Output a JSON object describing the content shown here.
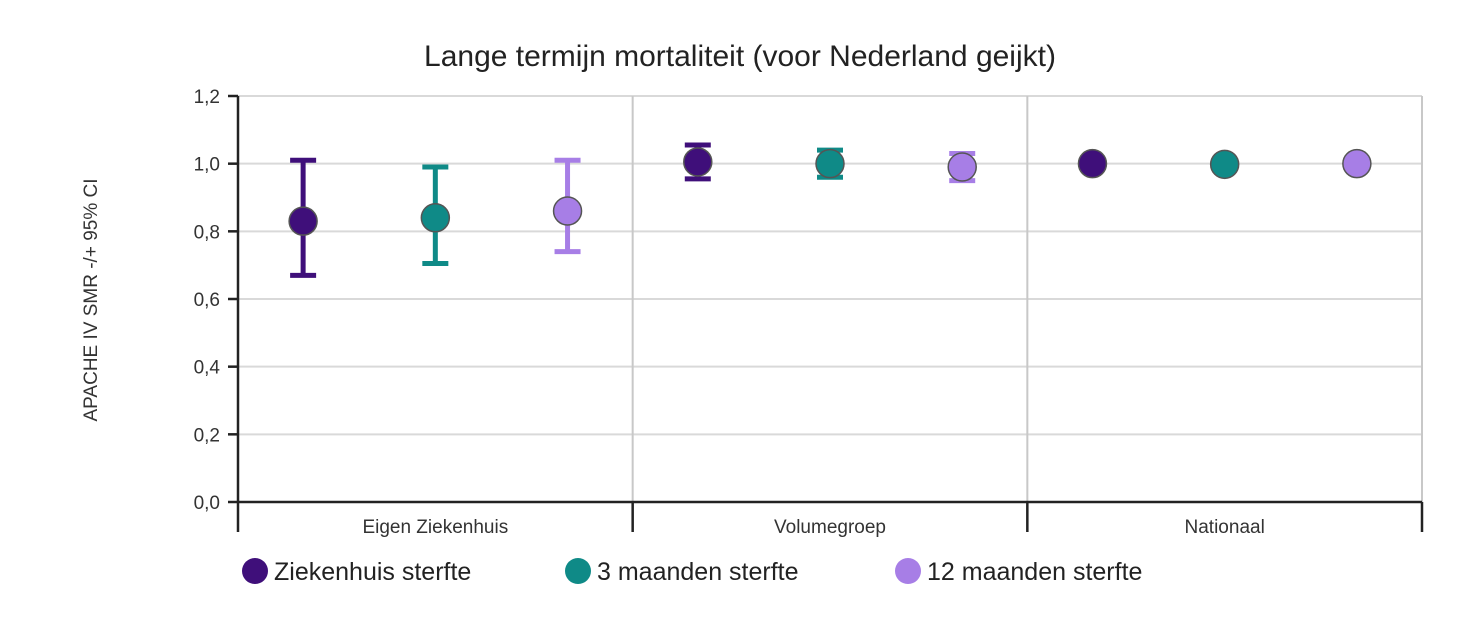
{
  "chart_data": {
    "type": "scatter",
    "title": "Lange termijn mortaliteit (voor Nederland geijkt)",
    "ylabel": "APACHE IV SMR -/+ 95% CI",
    "xlabel": "",
    "ylim": [
      0,
      1.2
    ],
    "yticks": [
      "0,0",
      "0,2",
      "0,4",
      "0,6",
      "0,8",
      "1,0",
      "1,2"
    ],
    "categories": [
      "Eigen Ziekenhuis",
      "Volumegroep",
      "Nationaal"
    ],
    "grid": true,
    "legend_position": "bottom",
    "series": [
      {
        "name": "Ziekenhuis sterfte",
        "color": "#3f0f7a",
        "values": [
          0.83,
          1.005,
          1.0
        ],
        "ci_low": [
          0.67,
          0.955,
          0.99
        ],
        "ci_high": [
          1.01,
          1.055,
          1.01
        ]
      },
      {
        "name": "3 maanden sterfte",
        "color": "#0f8a87",
        "values": [
          0.84,
          1.0,
          0.998
        ],
        "ci_low": [
          0.705,
          0.96,
          0.99
        ],
        "ci_high": [
          0.99,
          1.04,
          1.006
        ]
      },
      {
        "name": "12 maanden sterfte",
        "color": "#a77ee6",
        "values": [
          0.86,
          0.99,
          1.0
        ],
        "ci_low": [
          0.74,
          0.95,
          0.99
        ],
        "ci_high": [
          1.01,
          1.03,
          1.01
        ]
      }
    ]
  }
}
